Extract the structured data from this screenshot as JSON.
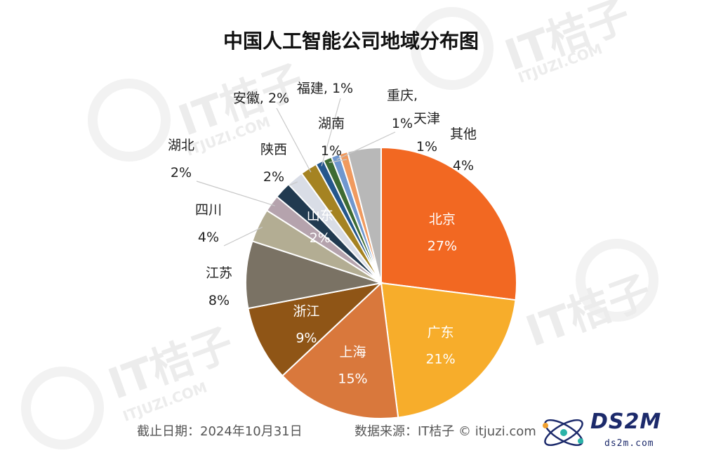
{
  "chart_data": {
    "type": "pie",
    "title": "中国人工智能公司地域分布图",
    "slices": [
      {
        "label": "北京",
        "value": 27,
        "value_label": "27%",
        "color": "#f26822"
      },
      {
        "label": "广东",
        "value": 21,
        "value_label": "21%",
        "color": "#f7ad2b"
      },
      {
        "label": "上海",
        "value": 15,
        "value_label": "15%",
        "color": "#d9783c"
      },
      {
        "label": "浙江",
        "value": 9,
        "value_label": "9%",
        "color": "#8f5516"
      },
      {
        "label": "江苏",
        "value": 8,
        "value_label": "8%",
        "color": "#7a7264"
      },
      {
        "label": "四川",
        "value": 4,
        "value_label": "4%",
        "color": "#b3ad93"
      },
      {
        "label": "湖北",
        "value": 2,
        "value_label": "2%",
        "color": "#b5a3ad"
      },
      {
        "label": "山东",
        "value": 2,
        "value_label": "2%",
        "color": "#213a50"
      },
      {
        "label": "陕西",
        "value": 2,
        "value_label": "2%",
        "color": "#d9dde6"
      },
      {
        "label": "安徽",
        "value": 2,
        "value_label": "2%",
        "color": "#a58322"
      },
      {
        "label": "福建",
        "value": 1,
        "value_label": "1%",
        "color": "#25578c"
      },
      {
        "label": "湖南",
        "value": 1,
        "value_label": "1%",
        "color": "#3e6b33"
      },
      {
        "label": "重庆",
        "value": 1,
        "value_label": "1%",
        "color": "#6f97cf"
      },
      {
        "label": "天津",
        "value": 1,
        "value_label": "1%",
        "color": "#f09a5f"
      },
      {
        "label": "其他",
        "value": 4,
        "value_label": "4%",
        "color": "#b8b8b8"
      }
    ]
  },
  "footer": {
    "date": "截止日期：2024年10月31日",
    "source": "数据来源：IT桔子 © itjuzi.com"
  },
  "watermark": {
    "brand": "IT桔子",
    "url": "ITJUZI.COM"
  },
  "logo": {
    "name": "DS2M",
    "url": "ds2m.com"
  }
}
